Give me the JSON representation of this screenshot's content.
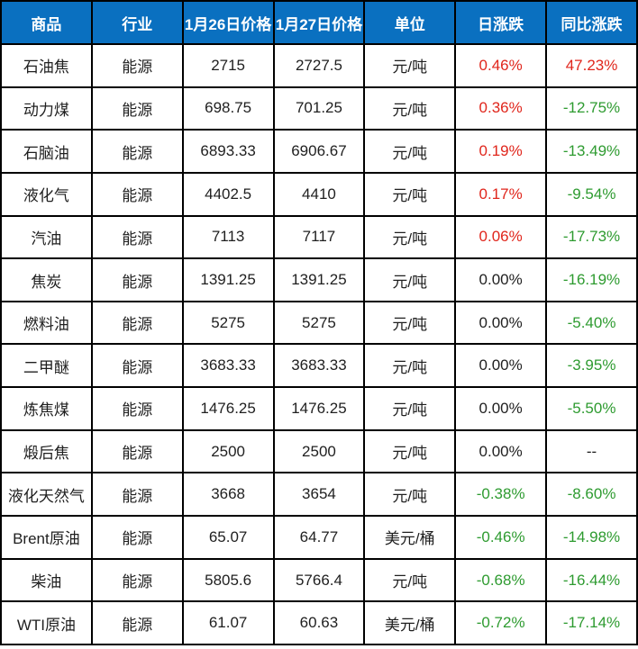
{
  "colors": {
    "header_bg": "#0a70c0",
    "header_text": "#ffffff",
    "up": "#e0261c",
    "down": "#2e9b30",
    "neutral": "#1f1f1f",
    "border": "#000000"
  },
  "table": {
    "headers": [
      "商品",
      "行业",
      "1月26日价格",
      "1月27日价格",
      "单位",
      "日涨跌",
      "同比涨跌"
    ],
    "rows": [
      {
        "commodity": "石油焦",
        "industry": "能源",
        "price_0126": "2715",
        "price_0127": "2727.5",
        "unit": "元/吨",
        "daily_change": "0.46%",
        "yoy_change": "47.23%"
      },
      {
        "commodity": "动力煤",
        "industry": "能源",
        "price_0126": "698.75",
        "price_0127": "701.25",
        "unit": "元/吨",
        "daily_change": "0.36%",
        "yoy_change": "-12.75%"
      },
      {
        "commodity": "石脑油",
        "industry": "能源",
        "price_0126": "6893.33",
        "price_0127": "6906.67",
        "unit": "元/吨",
        "daily_change": "0.19%",
        "yoy_change": "-13.49%"
      },
      {
        "commodity": "液化气",
        "industry": "能源",
        "price_0126": "4402.5",
        "price_0127": "4410",
        "unit": "元/吨",
        "daily_change": "0.17%",
        "yoy_change": "-9.54%"
      },
      {
        "commodity": "汽油",
        "industry": "能源",
        "price_0126": "7113",
        "price_0127": "7117",
        "unit": "元/吨",
        "daily_change": "0.06%",
        "yoy_change": "-17.73%"
      },
      {
        "commodity": "焦炭",
        "industry": "能源",
        "price_0126": "1391.25",
        "price_0127": "1391.25",
        "unit": "元/吨",
        "daily_change": "0.00%",
        "yoy_change": "-16.19%"
      },
      {
        "commodity": "燃料油",
        "industry": "能源",
        "price_0126": "5275",
        "price_0127": "5275",
        "unit": "元/吨",
        "daily_change": "0.00%",
        "yoy_change": "-5.40%"
      },
      {
        "commodity": "二甲醚",
        "industry": "能源",
        "price_0126": "3683.33",
        "price_0127": "3683.33",
        "unit": "元/吨",
        "daily_change": "0.00%",
        "yoy_change": "-3.95%"
      },
      {
        "commodity": "炼焦煤",
        "industry": "能源",
        "price_0126": "1476.25",
        "price_0127": "1476.25",
        "unit": "元/吨",
        "daily_change": "0.00%",
        "yoy_change": "-5.50%"
      },
      {
        "commodity": "煅后焦",
        "industry": "能源",
        "price_0126": "2500",
        "price_0127": "2500",
        "unit": "元/吨",
        "daily_change": "0.00%",
        "yoy_change": "--"
      },
      {
        "commodity": "液化天然气",
        "industry": "能源",
        "price_0126": "3668",
        "price_0127": "3654",
        "unit": "元/吨",
        "daily_change": "-0.38%",
        "yoy_change": "-8.60%"
      },
      {
        "commodity": "Brent原油",
        "industry": "能源",
        "price_0126": "65.07",
        "price_0127": "64.77",
        "unit": "美元/桶",
        "daily_change": "-0.46%",
        "yoy_change": "-14.98%"
      },
      {
        "commodity": "柴油",
        "industry": "能源",
        "price_0126": "5805.6",
        "price_0127": "5766.4",
        "unit": "元/吨",
        "daily_change": "-0.68%",
        "yoy_change": "-16.44%"
      },
      {
        "commodity": "WTI原油",
        "industry": "能源",
        "price_0126": "61.07",
        "price_0127": "60.63",
        "unit": "美元/桶",
        "daily_change": "-0.72%",
        "yoy_change": "-17.14%"
      }
    ]
  }
}
